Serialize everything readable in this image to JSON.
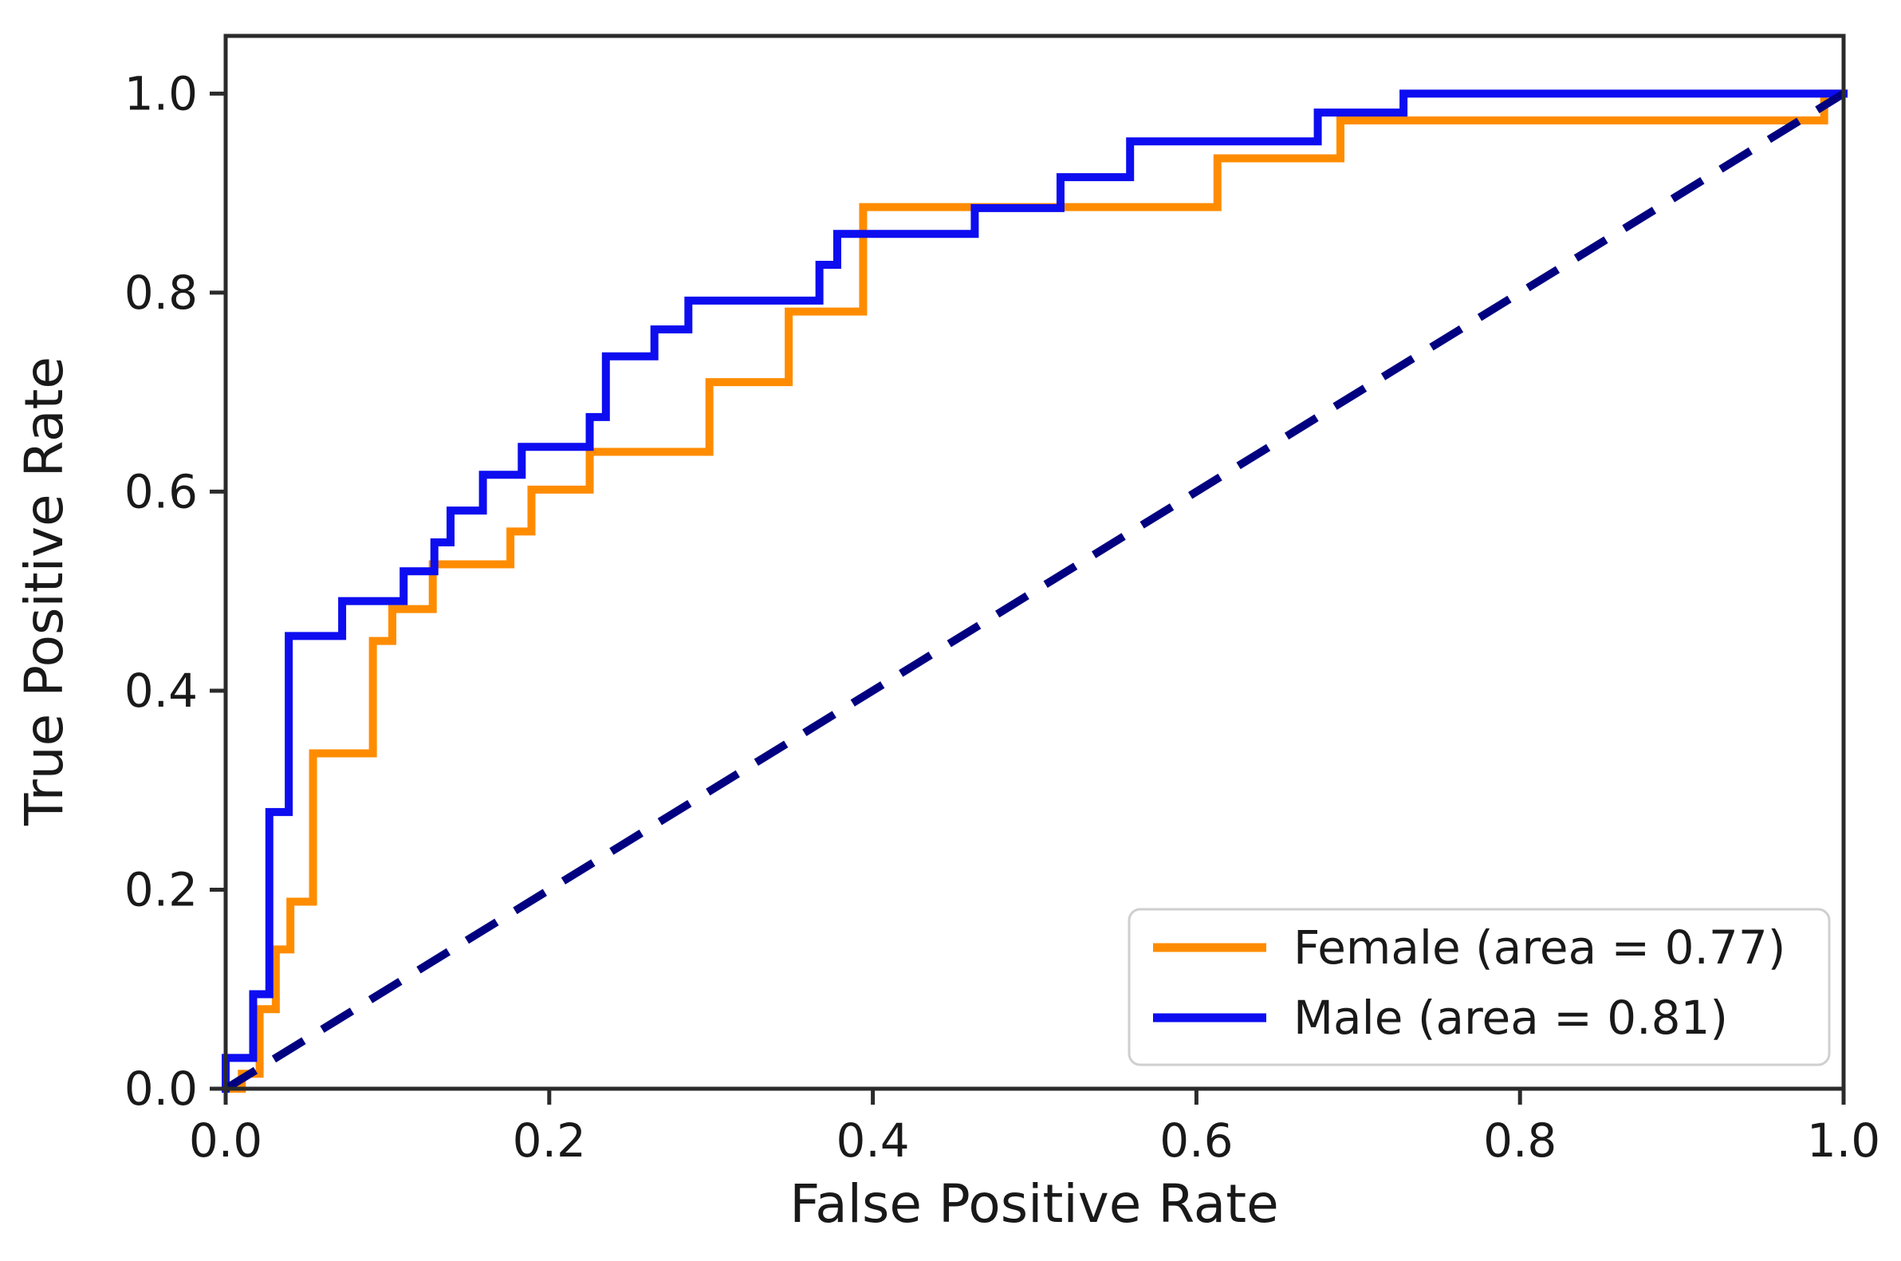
{
  "chart_data": {
    "type": "line",
    "subtype": "roc-step-curves",
    "title": "",
    "xlabel": "False Positive Rate",
    "ylabel": "True Positive Rate",
    "xlim": [
      0.0,
      1.0
    ],
    "ylim": [
      0.0,
      1.058
    ],
    "grid": false,
    "legend_position": "lower right",
    "background_color": "#ffffff",
    "axis_color": "#2b2b2b",
    "text_color": "#191919",
    "legend_border_color": "#cfcfcf",
    "x_ticks": {
      "values": [
        0.0,
        0.2,
        0.4,
        0.6,
        0.8,
        1.0
      ],
      "labels": [
        "0.0",
        "0.2",
        "0.4",
        "0.6",
        "0.8",
        "1.0"
      ]
    },
    "y_ticks": {
      "values": [
        0.0,
        0.2,
        0.4,
        0.6,
        0.8,
        1.0
      ],
      "labels": [
        "0.0",
        "0.2",
        "0.4",
        "0.6",
        "0.8",
        "1.0"
      ]
    },
    "series": [
      {
        "name": "Female",
        "legend_label": "Female (area = 0.77)",
        "auc": 0.77,
        "color": "#ff8c00",
        "style": "solid",
        "points": [
          [
            0.0,
            0.0
          ],
          [
            0.01,
            0.0
          ],
          [
            0.01,
            0.015
          ],
          [
            0.021,
            0.015
          ],
          [
            0.021,
            0.08
          ],
          [
            0.031,
            0.08
          ],
          [
            0.031,
            0.14
          ],
          [
            0.04,
            0.14
          ],
          [
            0.04,
            0.188
          ],
          [
            0.054,
            0.188
          ],
          [
            0.054,
            0.337
          ],
          [
            0.091,
            0.337
          ],
          [
            0.091,
            0.45
          ],
          [
            0.103,
            0.45
          ],
          [
            0.103,
            0.482
          ],
          [
            0.128,
            0.482
          ],
          [
            0.128,
            0.527
          ],
          [
            0.176,
            0.527
          ],
          [
            0.176,
            0.56
          ],
          [
            0.189,
            0.56
          ],
          [
            0.189,
            0.602
          ],
          [
            0.225,
            0.602
          ],
          [
            0.225,
            0.64
          ],
          [
            0.299,
            0.64
          ],
          [
            0.299,
            0.71
          ],
          [
            0.348,
            0.71
          ],
          [
            0.348,
            0.781
          ],
          [
            0.394,
            0.781
          ],
          [
            0.394,
            0.886
          ],
          [
            0.613,
            0.886
          ],
          [
            0.613,
            0.935
          ],
          [
            0.689,
            0.935
          ],
          [
            0.689,
            0.973
          ],
          [
            0.988,
            0.973
          ],
          [
            0.988,
            1.0
          ],
          [
            1.0,
            1.0
          ]
        ]
      },
      {
        "name": "Male",
        "legend_label": "Male (area = 0.81)",
        "auc": 0.81,
        "color": "#0d0df0",
        "style": "solid",
        "points": [
          [
            0.0,
            0.0
          ],
          [
            0.0,
            0.031
          ],
          [
            0.017,
            0.031
          ],
          [
            0.017,
            0.095
          ],
          [
            0.027,
            0.095
          ],
          [
            0.027,
            0.278
          ],
          [
            0.039,
            0.278
          ],
          [
            0.039,
            0.455
          ],
          [
            0.072,
            0.455
          ],
          [
            0.072,
            0.49
          ],
          [
            0.11,
            0.49
          ],
          [
            0.11,
            0.52
          ],
          [
            0.129,
            0.52
          ],
          [
            0.129,
            0.549
          ],
          [
            0.139,
            0.549
          ],
          [
            0.139,
            0.581
          ],
          [
            0.159,
            0.581
          ],
          [
            0.159,
            0.617
          ],
          [
            0.183,
            0.617
          ],
          [
            0.183,
            0.645
          ],
          [
            0.225,
            0.645
          ],
          [
            0.225,
            0.675
          ],
          [
            0.235,
            0.675
          ],
          [
            0.235,
            0.736
          ],
          [
            0.265,
            0.736
          ],
          [
            0.265,
            0.763
          ],
          [
            0.286,
            0.763
          ],
          [
            0.286,
            0.792
          ],
          [
            0.367,
            0.792
          ],
          [
            0.367,
            0.828
          ],
          [
            0.378,
            0.828
          ],
          [
            0.378,
            0.859
          ],
          [
            0.463,
            0.859
          ],
          [
            0.463,
            0.885
          ],
          [
            0.516,
            0.885
          ],
          [
            0.516,
            0.916
          ],
          [
            0.559,
            0.916
          ],
          [
            0.559,
            0.952
          ],
          [
            0.675,
            0.952
          ],
          [
            0.675,
            0.981
          ],
          [
            0.728,
            0.981
          ],
          [
            0.728,
            1.0
          ],
          [
            1.0,
            1.0
          ]
        ]
      }
    ],
    "reference_line": {
      "name": "chance-diagonal",
      "color": "#000080",
      "style": "dashed",
      "points": [
        [
          0.0,
          0.0
        ],
        [
          1.0,
          1.0
        ]
      ]
    }
  }
}
